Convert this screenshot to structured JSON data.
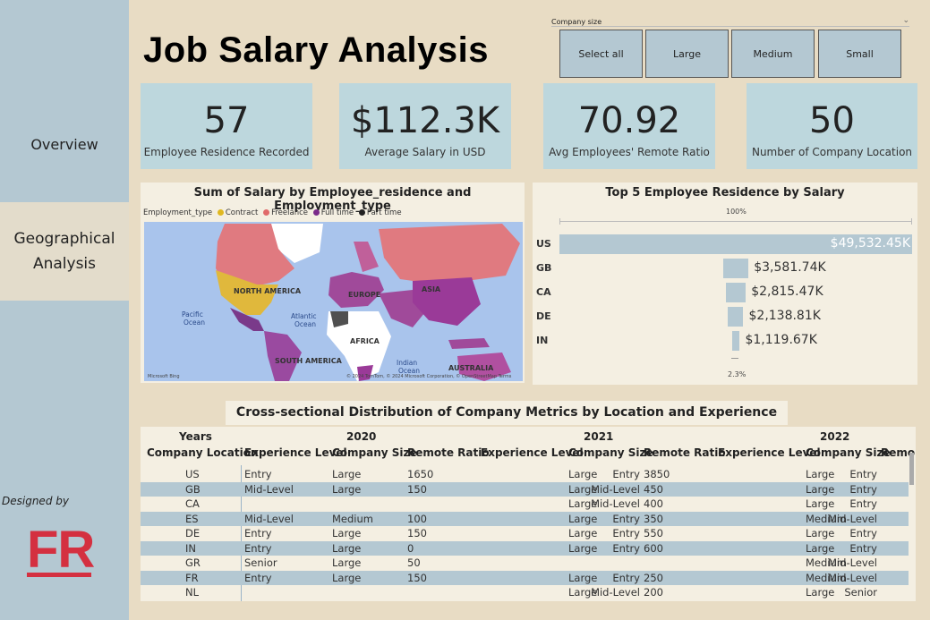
{
  "sidebar": {
    "items": [
      {
        "label": "Overview",
        "active": false
      },
      {
        "label": "Geographical Analysis",
        "active": true
      }
    ],
    "designed_by": "Designed by",
    "logo_text": "FR"
  },
  "header": {
    "title": "Job Salary Analysis"
  },
  "slicer": {
    "label": "Company size",
    "options": [
      "Select all",
      "Large",
      "Medium",
      "Small"
    ]
  },
  "kpis": [
    {
      "value": "57",
      "label": "Employee Residence Recorded"
    },
    {
      "value": "$112.3K",
      "label": "Average Salary in USD"
    },
    {
      "value": "70.92",
      "label": "Avg Employees' Remote Ratio"
    },
    {
      "value": "50",
      "label": "Number of Company Location"
    }
  ],
  "map": {
    "title": "Sum of Salary by Employee_residence and Employment_type",
    "legend_title": "Employment_type",
    "legend": [
      {
        "name": "Contract",
        "color": "#e0b820"
      },
      {
        "name": "Freelance",
        "color": "#e06a6a"
      },
      {
        "name": "Full time",
        "color": "#7a2a8a"
      },
      {
        "name": "Part time",
        "color": "#222222"
      }
    ],
    "labels": {
      "na": "NORTH AMERICA",
      "eu": "EUROPE",
      "asia": "ASIA",
      "af": "AFRICA",
      "sa": "SOUTH AMERICA",
      "au": "AUSTRALIA",
      "pac1": "Pacific",
      "pac2": "Ocean",
      "atl1": "Atlantic",
      "atl2": "Ocean",
      "ind1": "Indian",
      "ind2": "Ocean"
    },
    "bing": "Microsoft Bing",
    "credit": "© 2024 TomTom, © 2024 Microsoft Corporation, © OpenStreetMap  Terms"
  },
  "chart_data": {
    "type": "bar",
    "title": "Top 5 Employee Residence by Salary",
    "orientation": "horizontal",
    "categories": [
      "US",
      "GB",
      "CA",
      "DE",
      "IN"
    ],
    "values": [
      49532.45,
      3581.74,
      2815.47,
      2138.81,
      1119.67
    ],
    "value_unit": "K",
    "data_labels": [
      "$49,532.45K",
      "$3,581.74K",
      "$2,815.47K",
      "$2,138.81K",
      "$1,119.67K"
    ],
    "scale_top": "100%",
    "scale_bottom": "2.3%"
  },
  "table": {
    "title": "Cross-sectional Distribution of Company Metrics by Location and Experience Level",
    "row_header_top": "Years",
    "row_header": "Company Location",
    "years": [
      "2020",
      "2021",
      "2022"
    ],
    "columns": [
      "Experience Level",
      "Company Size",
      "Remote Ratio",
      "Experience Level",
      "Company Size",
      "Remote Ratio",
      "Experience Level",
      "Company Size",
      "Remo"
    ],
    "rows": [
      [
        "US",
        "Entry",
        "Large",
        "1650",
        "Entry",
        "Large",
        "3850",
        "Entry",
        "Large"
      ],
      [
        "GB",
        "Mid-Level",
        "Large",
        "150",
        "Mid-Level",
        "Large",
        "450",
        "Entry",
        "Large"
      ],
      [
        "CA",
        "",
        "",
        "",
        "Mid-Level",
        "Large",
        "400",
        "Entry",
        "Large"
      ],
      [
        "ES",
        "Mid-Level",
        "Medium",
        "100",
        "Entry",
        "Large",
        "350",
        "Mid-Level",
        "Medium"
      ],
      [
        "DE",
        "Entry",
        "Large",
        "150",
        "Entry",
        "Large",
        "550",
        "Entry",
        "Large"
      ],
      [
        "IN",
        "Entry",
        "Large",
        "0",
        "Entry",
        "Large",
        "600",
        "Entry",
        "Large"
      ],
      [
        "GR",
        "Senior",
        "Large",
        "50",
        "",
        "",
        "",
        "Mid-Level",
        "Medium"
      ],
      [
        "FR",
        "Entry",
        "Large",
        "150",
        "Entry",
        "Large",
        "250",
        "Mid-Level",
        "Medium"
      ],
      [
        "NL",
        "",
        "",
        "",
        "Mid-Level",
        "Large",
        "200",
        "Senior",
        "Large"
      ]
    ]
  },
  "colors": {
    "accent": "#b4c8d2",
    "background": "#e8dcc4",
    "kpi": "#bdd7dd",
    "logo": "#d43040"
  }
}
